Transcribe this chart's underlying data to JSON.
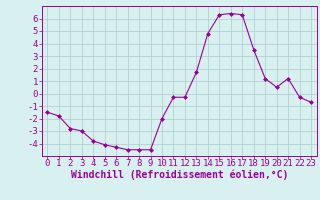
{
  "hours": [
    0,
    1,
    2,
    3,
    4,
    5,
    6,
    7,
    8,
    9,
    10,
    11,
    12,
    13,
    14,
    15,
    16,
    17,
    18,
    19,
    20,
    21,
    22,
    23
  ],
  "values": [
    -1.5,
    -1.8,
    -2.8,
    -3.0,
    -3.8,
    -4.1,
    -4.3,
    -4.5,
    -4.5,
    -4.5,
    -2.0,
    -0.3,
    -0.3,
    1.7,
    4.8,
    6.3,
    6.4,
    6.3,
    3.5,
    1.2,
    0.5,
    1.2,
    -0.3,
    -0.7
  ],
  "line_color": "#990099",
  "marker": "D",
  "marker_size": 2,
  "bg_color": "#d8f0f0",
  "grid_color": "#aacccc",
  "xlabel": "Windchill (Refroidissement éolien,°C)",
  "xlabel_fontsize": 7,
  "tick_fontsize": 6.5,
  "xlim": [
    -0.5,
    23.5
  ],
  "ylim": [
    -5,
    7
  ],
  "yticks": [
    -4,
    -3,
    -2,
    -1,
    0,
    1,
    2,
    3,
    4,
    5,
    6
  ],
  "xtick_labels": [
    "0",
    "1",
    "2",
    "3",
    "4",
    "5",
    "6",
    "7",
    "8",
    "9",
    "10",
    "11",
    "12",
    "13",
    "14",
    "15",
    "16",
    "17",
    "18",
    "19",
    "20",
    "21",
    "22",
    "23"
  ]
}
